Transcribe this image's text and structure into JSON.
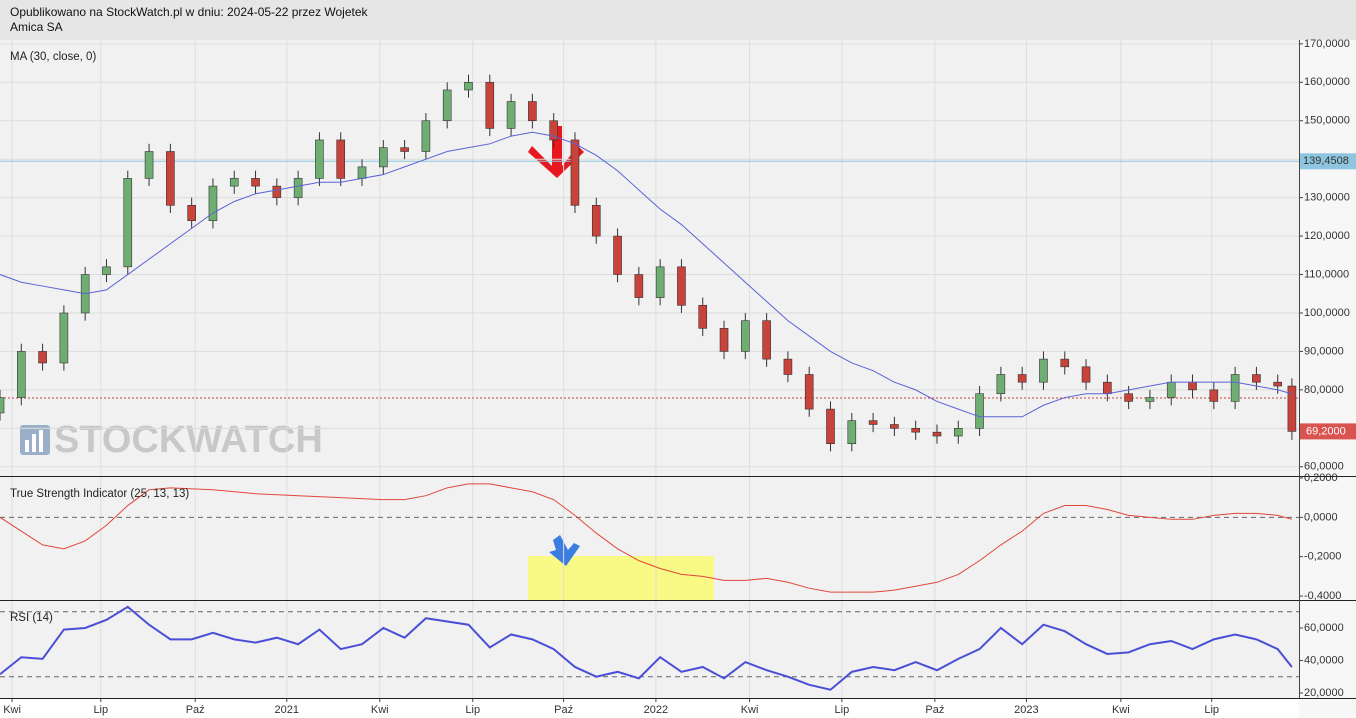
{
  "header": {
    "line1": "Opublikowano na StockWatch.pl w dniu: 2024-05-22 przez Wojetek",
    "line2": "Amica SA"
  },
  "watermark": "STOCKWATCH",
  "chart_data": [
    {
      "type": "candlestick",
      "title": "MA (30, close, 0)",
      "xlim": [
        0,
        183
      ],
      "ylim": [
        57.6,
        171
      ],
      "grid": true,
      "yticks": [
        {
          "value": 60,
          "label": "60,0000"
        },
        {
          "value": 70,
          "label": "70,0000"
        },
        {
          "value": 80,
          "label": "80,0000"
        },
        {
          "value": 90,
          "label": "90,0000"
        },
        {
          "value": 100,
          "label": "100,0000"
        },
        {
          "value": 110,
          "label": "110,0000"
        },
        {
          "value": 120,
          "label": "120,0000"
        },
        {
          "value": 130,
          "label": "130,0000"
        },
        {
          "value": 140,
          "label": "140,0000"
        },
        {
          "value": 150,
          "label": "150,0000"
        },
        {
          "value": 160,
          "label": "160,0000"
        },
        {
          "value": 170,
          "label": "170,0000"
        }
      ],
      "x": [
        0,
        3,
        6,
        9,
        12,
        15,
        18,
        21,
        24,
        27,
        30,
        33,
        36,
        39,
        42,
        45,
        48,
        51,
        54,
        57,
        60,
        63,
        66,
        69,
        72,
        75,
        78,
        81,
        84,
        87,
        90,
        93,
        96,
        99,
        102,
        105,
        108,
        111,
        114,
        117,
        120,
        123,
        126,
        129,
        132,
        135,
        138,
        141,
        144,
        147,
        150,
        153,
        156,
        159,
        162,
        165,
        168,
        171,
        174,
        177,
        180,
        182
      ],
      "open": [
        74,
        78,
        90,
        87,
        100,
        110,
        112,
        135,
        142,
        128,
        124,
        133,
        135,
        133,
        130,
        135,
        145,
        135,
        138,
        143,
        142,
        150,
        158,
        160,
        148,
        155,
        150,
        145,
        128,
        120,
        110,
        104,
        112,
        102,
        96,
        90,
        98,
        88,
        84,
        75,
        66,
        72,
        71,
        70,
        69,
        68,
        70,
        79,
        84,
        82,
        88,
        86,
        82,
        79,
        77,
        78,
        82,
        80,
        77,
        84,
        82,
        81
      ],
      "high": [
        80,
        92,
        92,
        102,
        112,
        114,
        137,
        144,
        144,
        130,
        135,
        137,
        137,
        135,
        137,
        147,
        147,
        140,
        145,
        145,
        152,
        160,
        162,
        162,
        157,
        157,
        152,
        147,
        130,
        122,
        112,
        114,
        114,
        104,
        98,
        100,
        100,
        90,
        86,
        77,
        74,
        74,
        73,
        72,
        71,
        72,
        81,
        86,
        86,
        90,
        90,
        88,
        84,
        81,
        80,
        84,
        84,
        82,
        86,
        86,
        84,
        83
      ],
      "low": [
        72,
        76,
        85,
        85,
        98,
        108,
        110,
        133,
        126,
        122,
        122,
        131,
        131,
        128,
        128,
        133,
        133,
        133,
        136,
        140,
        140,
        148,
        156,
        146,
        146,
        148,
        143,
        126,
        118,
        108,
        102,
        102,
        100,
        94,
        88,
        88,
        86,
        82,
        73,
        64,
        64,
        69,
        68,
        67,
        66,
        66,
        68,
        77,
        80,
        80,
        84,
        80,
        77,
        75,
        75,
        76,
        78,
        75,
        75,
        80,
        79,
        67
      ],
      "close": [
        78,
        90,
        87,
        100,
        110,
        112,
        135,
        142,
        128,
        124,
        133,
        135,
        133,
        130,
        135,
        145,
        135,
        138,
        143,
        142,
        150,
        158,
        160,
        148,
        155,
        150,
        145,
        128,
        120,
        110,
        104,
        112,
        102,
        96,
        90,
        98,
        88,
        84,
        75,
        66,
        72,
        71,
        70,
        69,
        68,
        70,
        79,
        84,
        82,
        88,
        86,
        82,
        79,
        77,
        78,
        82,
        80,
        77,
        84,
        82,
        81,
        69.2
      ],
      "up_color": "#6fae73",
      "down_color": "#c8433a",
      "ma": {
        "values": [
          110,
          108,
          107,
          106,
          105,
          106,
          110,
          114,
          118,
          122,
          126,
          129,
          131,
          132,
          133,
          134,
          134,
          135,
          136,
          138,
          140,
          142,
          143,
          144,
          146,
          147,
          146,
          144,
          141,
          137,
          132,
          127,
          123,
          118,
          113,
          108,
          103,
          98,
          94,
          90,
          87,
          85,
          82,
          80,
          77,
          75,
          73,
          73,
          73,
          76,
          78,
          79,
          79,
          80,
          81,
          82,
          82,
          82,
          82,
          81,
          80,
          79
        ],
        "color": "#5a62d8"
      },
      "hlines": [
        {
          "value": 139.4508,
          "label": "139,4508",
          "color": "#8ec5df"
        },
        {
          "value": 77.9,
          "color": "#c8433a"
        }
      ],
      "last_label": {
        "value": 69.2,
        "label": "69,2000",
        "color": "#d9534f"
      }
    },
    {
      "type": "line",
      "title": "True Strength Indicator (25, 13, 13)",
      "xlim": [
        0,
        183
      ],
      "ylim": [
        -0.42,
        0.205
      ],
      "color": "#e0483a",
      "yticks": [
        {
          "value": -0.4,
          "label": "-0,4000"
        },
        {
          "value": -0.2,
          "label": "-0,2000"
        },
        {
          "value": 0,
          "label": "0,0000"
        },
        {
          "value": 0.2,
          "label": "0,2000"
        }
      ],
      "x": [
        0,
        6,
        9,
        12,
        15,
        18,
        21,
        24,
        30,
        36,
        42,
        48,
        54,
        57,
        60,
        63,
        66,
        69,
        72,
        75,
        78,
        81,
        84,
        87,
        90,
        93,
        96,
        99,
        102,
        105,
        108,
        111,
        114,
        117,
        120,
        123,
        126,
        129,
        132,
        135,
        138,
        141,
        144,
        147,
        150,
        153,
        156,
        159,
        162,
        165,
        168,
        171,
        174,
        177,
        180,
        182
      ],
      "values": [
        0,
        -0.14,
        -0.16,
        -0.12,
        -0.04,
        0.06,
        0.14,
        0.15,
        0.14,
        0.12,
        0.11,
        0.1,
        0.09,
        0.09,
        0.11,
        0.15,
        0.17,
        0.17,
        0.15,
        0.13,
        0.09,
        0.01,
        -0.08,
        -0.16,
        -0.22,
        -0.26,
        -0.29,
        -0.3,
        -0.32,
        -0.32,
        -0.31,
        -0.33,
        -0.36,
        -0.38,
        -0.38,
        -0.38,
        -0.37,
        -0.35,
        -0.33,
        -0.29,
        -0.22,
        -0.14,
        -0.07,
        0.02,
        0.06,
        0.06,
        0.04,
        0.01,
        0,
        -0.01,
        -0.01,
        0.01,
        0.02,
        0.02,
        0.01,
        -0.01
      ],
      "hlines": [
        {
          "value": 0
        }
      ]
    },
    {
      "type": "line",
      "title": "RSI (14)",
      "xlim": [
        0,
        183
      ],
      "ylim": [
        16.9,
        76.6
      ],
      "color": "#4a4fd6",
      "yticks": [
        {
          "value": 20,
          "label": "20,0000"
        },
        {
          "value": 40,
          "label": "40,0000"
        },
        {
          "value": 60,
          "label": "60,0000"
        }
      ],
      "x": [
        0,
        3,
        6,
        9,
        12,
        15,
        18,
        21,
        24,
        27,
        30,
        33,
        36,
        39,
        42,
        45,
        48,
        51,
        54,
        57,
        60,
        63,
        66,
        69,
        72,
        75,
        78,
        81,
        84,
        87,
        90,
        93,
        96,
        99,
        102,
        105,
        108,
        111,
        114,
        117,
        120,
        123,
        126,
        129,
        132,
        135,
        138,
        141,
        144,
        147,
        150,
        153,
        156,
        159,
        162,
        165,
        168,
        171,
        174,
        177,
        180,
        182
      ],
      "values": [
        31.5,
        42,
        41,
        59,
        60,
        65,
        73,
        62,
        53,
        53,
        57,
        53,
        51,
        54,
        50,
        59,
        47,
        50,
        60,
        54,
        66,
        64,
        62,
        48,
        56,
        53,
        47,
        36,
        30,
        33,
        29,
        42,
        33,
        36,
        29,
        39,
        34,
        30,
        25,
        22,
        33,
        36,
        34,
        39,
        34,
        41,
        47,
        60,
        50,
        62,
        58,
        50,
        44,
        45,
        50,
        52,
        47,
        53,
        56,
        53,
        47,
        36
      ],
      "hlines": [
        {
          "value": 70
        },
        {
          "value": 30
        }
      ],
      "xticks": [
        {
          "value": 1.7,
          "label": "Kwi"
        },
        {
          "value": 14.2,
          "label": "Lip"
        },
        {
          "value": 27.5,
          "label": "Paź"
        },
        {
          "value": 40.4,
          "label": "2021"
        },
        {
          "value": 53.5,
          "label": "Kwi"
        },
        {
          "value": 66.6,
          "label": "Lip"
        },
        {
          "value": 79.4,
          "label": "Paź"
        },
        {
          "value": 92.4,
          "label": "2022"
        },
        {
          "value": 105.6,
          "label": "Kwi"
        },
        {
          "value": 118.6,
          "label": "Lip"
        },
        {
          "value": 131.7,
          "label": "Paź"
        },
        {
          "value": 144.6,
          "label": "2023"
        },
        {
          "value": 157.9,
          "label": "Kwi"
        },
        {
          "value": 170.7,
          "label": "Lip"
        }
      ]
    }
  ]
}
